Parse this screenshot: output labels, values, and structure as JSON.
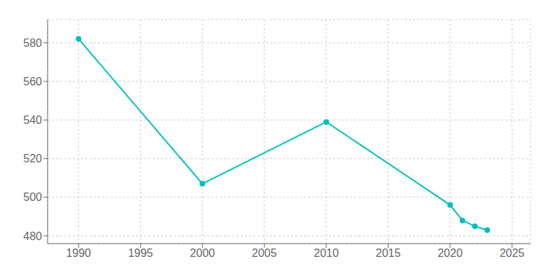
{
  "chart_data": {
    "type": "line",
    "x": [
      1990,
      2000,
      2010,
      2020,
      2021,
      2022,
      2023
    ],
    "values": [
      582,
      507,
      539,
      496,
      488,
      485,
      483
    ],
    "color": "#00BFBF",
    "marker": "circle",
    "xlim": [
      1987.5,
      2026.5
    ],
    "ylim": [
      476,
      592
    ],
    "xticks": [
      1990,
      1995,
      2000,
      2005,
      2010,
      2015,
      2020,
      2025
    ],
    "yticks": [
      480,
      500,
      520,
      540,
      560,
      580
    ],
    "grid": true
  }
}
